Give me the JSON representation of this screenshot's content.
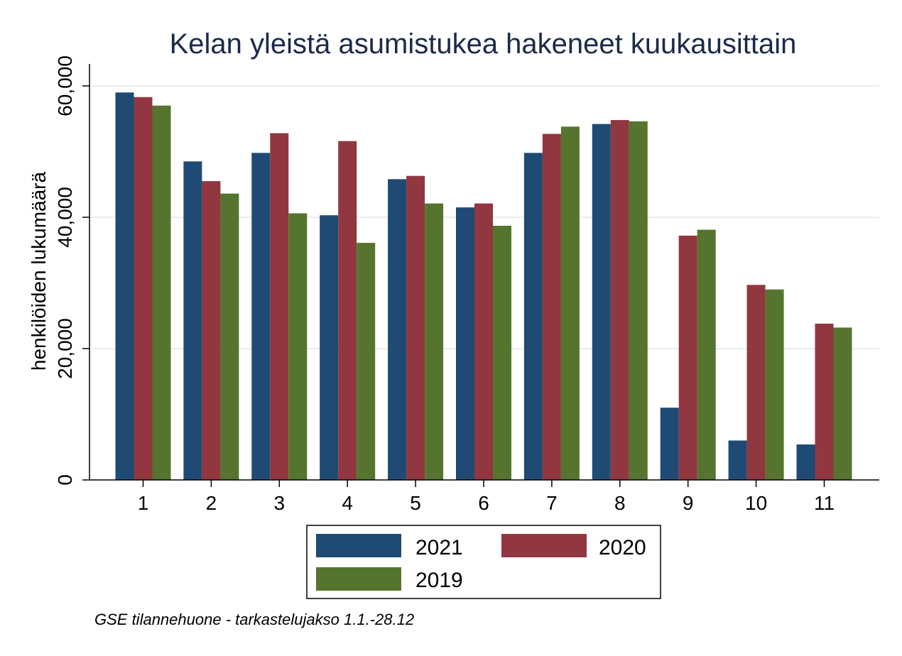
{
  "chart_data": {
    "type": "bar",
    "title": "Kelan yleistä asumistukea hakeneet kuukausittain",
    "ylabel": "henkilöiden lukumäärä",
    "xlabel": "",
    "categories": [
      "1",
      "2",
      "3",
      "4",
      "5",
      "6",
      "7",
      "8",
      "9",
      "10",
      "11"
    ],
    "ylim": [
      0,
      60000
    ],
    "yticks": [
      0,
      20000,
      40000,
      60000
    ],
    "ytick_labels": [
      "0",
      "20,000",
      "40,000",
      "60,000"
    ],
    "grid": true,
    "legend_position": "bottom",
    "series": [
      {
        "name": "2021",
        "color": "#1f4a73",
        "values": [
          59000,
          48500,
          49800,
          40300,
          45800,
          41500,
          49800,
          54200,
          11000,
          6000,
          5400
        ]
      },
      {
        "name": "2020",
        "color": "#913740",
        "values": [
          58300,
          45500,
          52800,
          51600,
          46300,
          42100,
          52700,
          54800,
          37200,
          29700,
          23800
        ]
      },
      {
        "name": "2019",
        "color": "#55752f",
        "values": [
          57000,
          43600,
          40600,
          36100,
          42100,
          38700,
          53800,
          54600,
          38100,
          29000,
          23200
        ]
      }
    ],
    "note": "GSE tilannehuone - tarkastelujakso 1.1.-28.12"
  }
}
